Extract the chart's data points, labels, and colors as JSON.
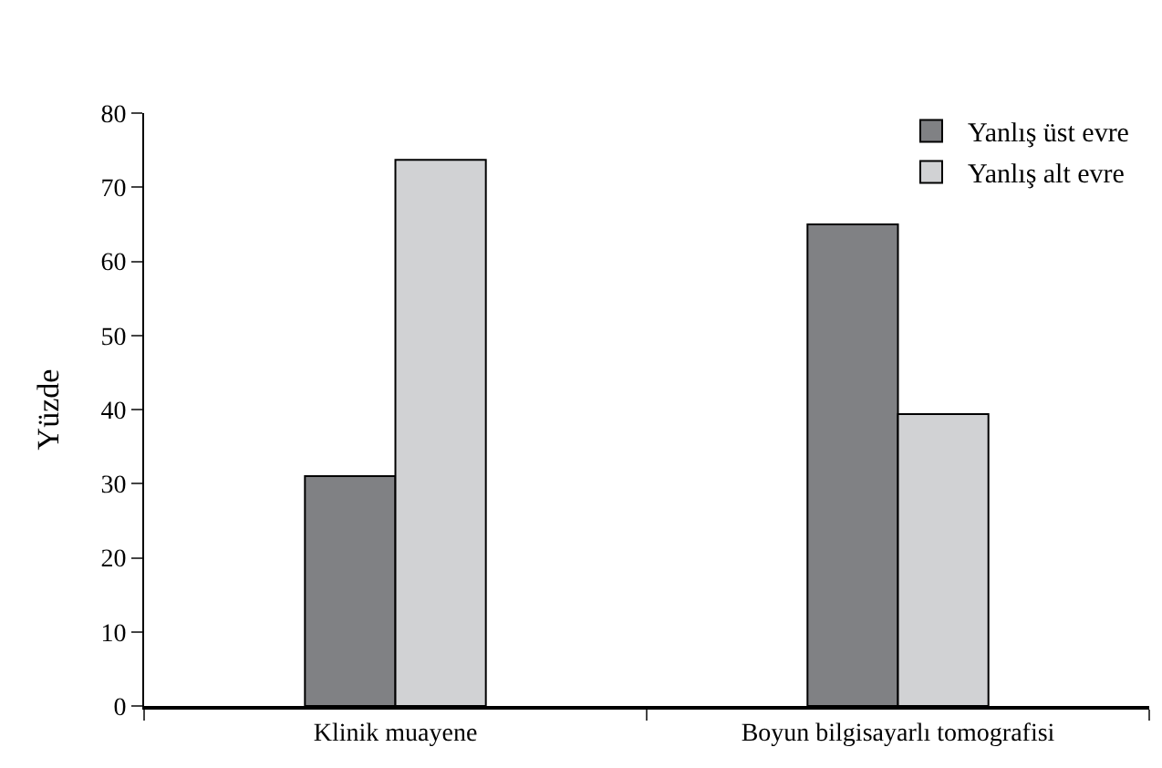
{
  "chart_data": {
    "type": "bar",
    "ylabel": "Yüzde",
    "categories": [
      "Klinik muayene",
      "Boyun bilgisayarlı tomografisi"
    ],
    "series": [
      {
        "name": "Yanlış üst evre",
        "color": "#808184",
        "values": [
          31,
          65
        ]
      },
      {
        "name": "Yanlış alt evre",
        "color": "#d1d2d4",
        "values": [
          73.7,
          39.4
        ]
      }
    ],
    "ylim": [
      0,
      80
    ],
    "yticks": [
      0,
      10,
      20,
      30,
      40,
      50,
      60,
      70,
      80
    ],
    "legend": "top right"
  }
}
